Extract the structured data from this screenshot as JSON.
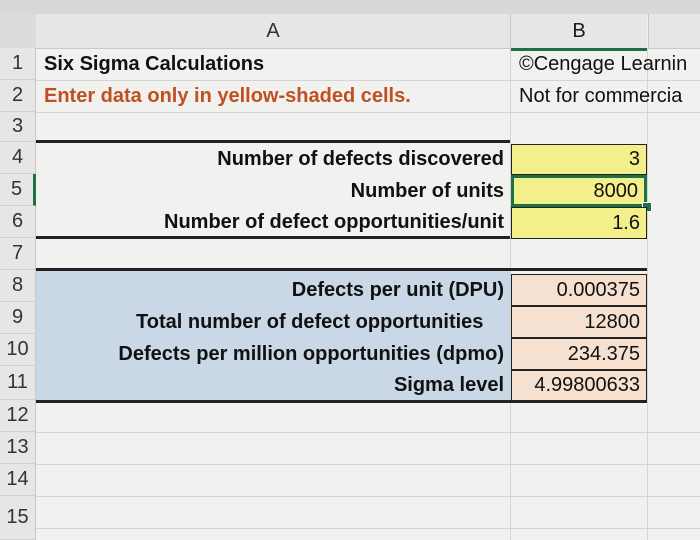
{
  "columns": {
    "a": "A",
    "b": "B"
  },
  "rows": [
    "1",
    "2",
    "3",
    "4",
    "5",
    "6",
    "7",
    "8",
    "9",
    "10",
    "11",
    "12",
    "13",
    "14",
    "15"
  ],
  "row1": {
    "a": "Six Sigma Calculations",
    "b": "©Cengage Learnin"
  },
  "row2": {
    "a": "Enter data only in yellow-shaded cells.",
    "b": "Not for commercia"
  },
  "inputs": [
    {
      "label": "Number of defects discovered",
      "value": "3"
    },
    {
      "label": "Number of units",
      "value": "8000"
    },
    {
      "label": "Number of defect opportunities/unit",
      "value": "1.6"
    }
  ],
  "outputs": [
    {
      "label": "Defects per unit (DPU)",
      "value": "0.000375"
    },
    {
      "label": "Total number of defect opportunities",
      "value": "12800"
    },
    {
      "label": "Defects per million opportunities (dpmo)",
      "value": "234.375"
    },
    {
      "label": "Sigma level",
      "value": "4.99800633"
    }
  ],
  "colors": {
    "instruction_text": "#c0501f",
    "selection": "#1e7145",
    "input_fill": "#f3f08c",
    "output_fill": "#f6e0cf",
    "block_fill": "#c9d7e6"
  }
}
